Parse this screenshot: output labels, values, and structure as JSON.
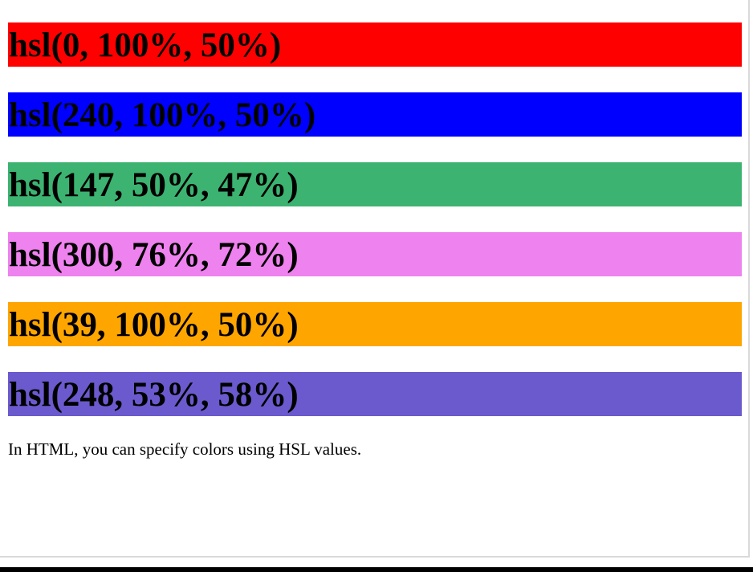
{
  "swatches": [
    {
      "label": "hsl(0, 100%, 50%)",
      "color": "#ff0000"
    },
    {
      "label": "hsl(240, 100%, 50%)",
      "color": "#0000ff"
    },
    {
      "label": "hsl(147, 50%, 47%)",
      "color": "#3cb371"
    },
    {
      "label": "hsl(300, 76%, 72%)",
      "color": "#ee82ee"
    },
    {
      "label": "hsl(39, 100%, 50%)",
      "color": "#ffa500"
    },
    {
      "label": "hsl(248, 53%, 58%)",
      "color": "#6a5acd"
    }
  ],
  "caption": "In HTML, you can specify colors using HSL values."
}
